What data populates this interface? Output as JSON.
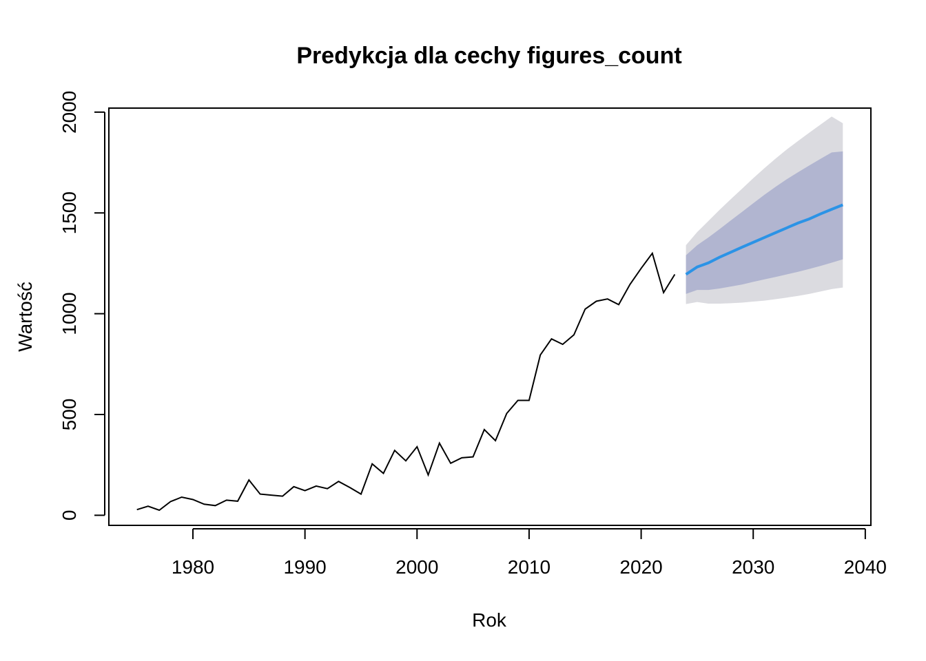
{
  "chart_data": {
    "type": "line",
    "title": "Predykcja dla cechy figures_count",
    "xlabel": "Rok",
    "ylabel": "Wartość",
    "xlim": [
      1972.5,
      2040.5
    ],
    "ylim": [
      -50,
      2020
    ],
    "x_ticks": [
      1980,
      1990,
      2000,
      2010,
      2020,
      2030,
      2040
    ],
    "y_ticks": [
      0,
      500,
      1000,
      1500,
      2000
    ],
    "x_tick_labels": [
      "1980",
      "1990",
      "2000",
      "2010",
      "2020",
      "2030",
      "2040"
    ],
    "y_tick_labels": [
      "0",
      "500",
      "1000",
      "1500",
      "2000"
    ],
    "grid": false,
    "colors": {
      "history": "#000000",
      "forecast": "#2b93e6",
      "band_80": "#b1b5d0",
      "band_95": "#dbdbe0"
    },
    "series": [
      {
        "role": "history",
        "x": [
          1975,
          1976,
          1977,
          1978,
          1979,
          1980,
          1981,
          1982,
          1983,
          1984,
          1985,
          1986,
          1987,
          1988,
          1989,
          1990,
          1991,
          1992,
          1993,
          1994,
          1995,
          1996,
          1997,
          1998,
          1999,
          2000,
          2001,
          2002,
          2003,
          2004,
          2005,
          2006,
          2007,
          2008,
          2009,
          2010,
          2011,
          2012,
          2013,
          2014,
          2015,
          2016,
          2017,
          2018,
          2019,
          2020,
          2021,
          2022,
          2023
        ],
        "values": [
          28,
          45,
          25,
          68,
          90,
          78,
          55,
          48,
          75,
          70,
          175,
          105,
          100,
          95,
          142,
          122,
          145,
          132,
          168,
          138,
          105,
          255,
          208,
          322,
          270,
          340,
          200,
          358,
          258,
          285,
          290,
          425,
          370,
          505,
          570,
          570,
          795,
          875,
          848,
          895,
          1023,
          1062,
          1073,
          1045,
          1145,
          1225,
          1300,
          1105,
          1195
        ]
      },
      {
        "role": "forecast",
        "x": [
          2024,
          2025,
          2026,
          2027,
          2028,
          2029,
          2030,
          2031,
          2032,
          2033,
          2034,
          2035,
          2036,
          2037,
          2038
        ],
        "values": [
          1195,
          1232,
          1252,
          1280,
          1305,
          1330,
          1354,
          1378,
          1402,
          1426,
          1450,
          1470,
          1495,
          1518,
          1540
        ],
        "lo80": [
          1098,
          1118,
          1118,
          1125,
          1135,
          1145,
          1158,
          1170,
          1182,
          1195,
          1208,
          1222,
          1237,
          1253,
          1270
        ],
        "hi80": [
          1290,
          1340,
          1378,
          1420,
          1463,
          1505,
          1548,
          1590,
          1630,
          1667,
          1702,
          1735,
          1768,
          1800,
          1805
        ],
        "lo95": [
          1048,
          1058,
          1050,
          1050,
          1052,
          1055,
          1060,
          1065,
          1072,
          1080,
          1088,
          1098,
          1110,
          1122,
          1130
        ],
        "hi95": [
          1340,
          1405,
          1460,
          1515,
          1568,
          1620,
          1672,
          1722,
          1770,
          1815,
          1857,
          1898,
          1938,
          1978,
          1945
        ]
      }
    ]
  }
}
